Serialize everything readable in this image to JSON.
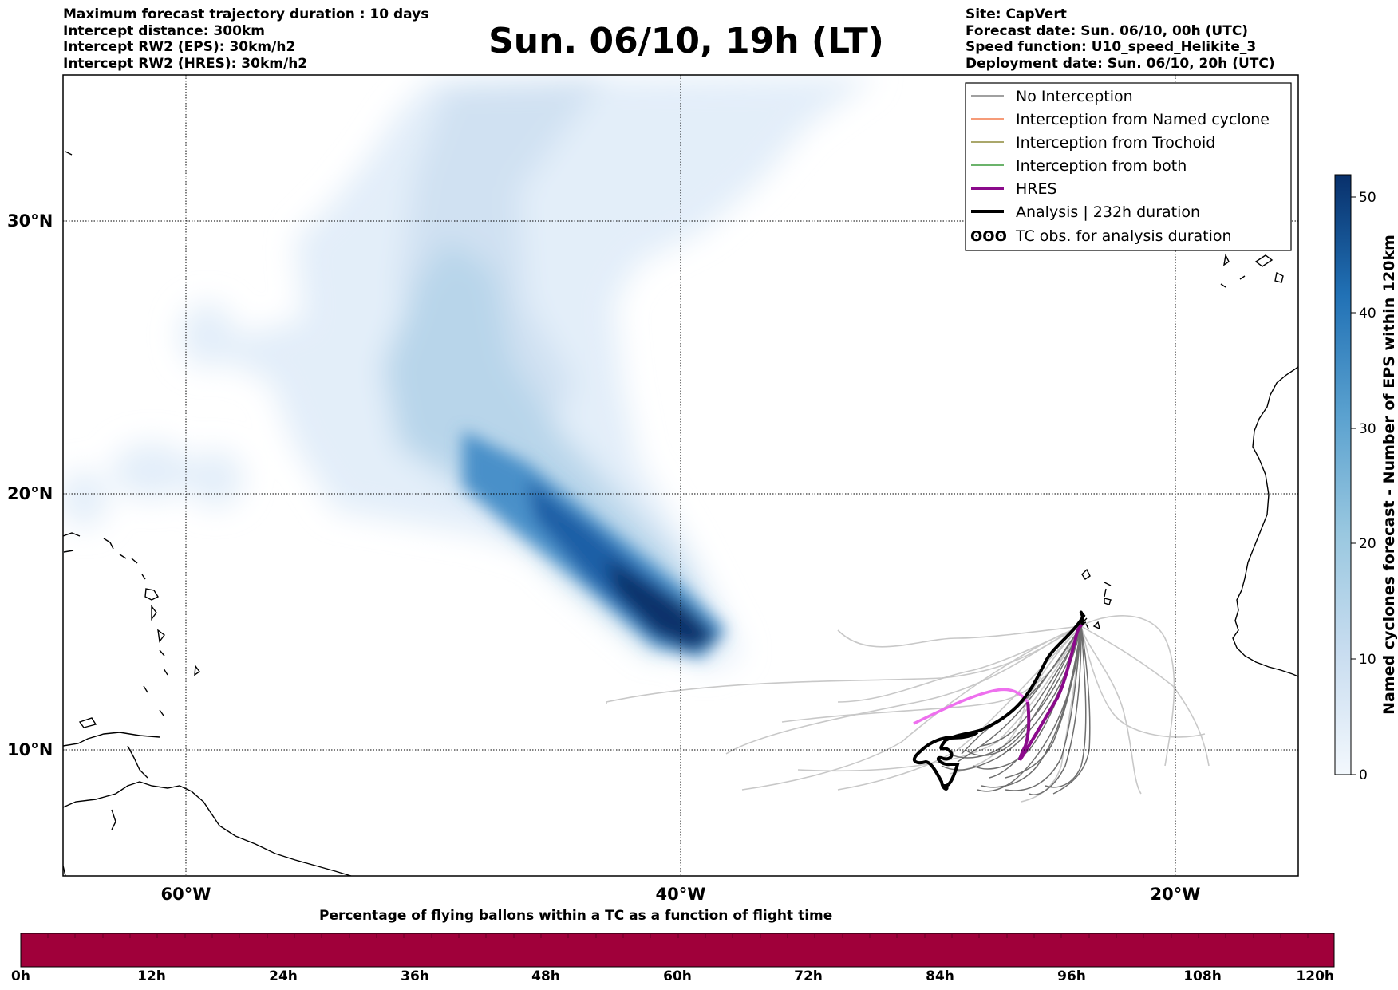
{
  "header": {
    "left_lines": [
      "Maximum forecast trajectory duration : 10 days",
      "Intercept distance: 300km",
      "Intercept RW2 (EPS):  30km/h2",
      "Intercept RW2 (HRES): 30km/h2"
    ],
    "title": "Sun. 06/10, 19h (LT)",
    "right_lines": [
      "Site: CapVert",
      "Forecast date: Sun. 06/10, 00h (UTC)",
      "Speed function: U10_speed_Helikite_3",
      "Deployment date: Sun. 06/10, 20h (UTC)"
    ]
  },
  "map": {
    "lon_labels": [
      "60°W",
      "40°W",
      "20°W"
    ],
    "lat_labels": [
      "30°N",
      "20°N",
      "10°N"
    ],
    "legend": [
      {
        "label": "No Interception",
        "color": "#808080"
      },
      {
        "label": "Interception from Named cyclone",
        "color": "#f47a4c"
      },
      {
        "label": "Interception from Trochoid",
        "color": "#8e8a3a"
      },
      {
        "label": "Interception from both",
        "color": "#3a9a3a"
      },
      {
        "label": "HRES",
        "color": "#8b0a8b"
      },
      {
        "label": "Analysis | 232h duration",
        "color": "#000000"
      },
      {
        "label": "TC obs. for analysis duration",
        "color": "#000000",
        "symbol": "ʘʘʘ"
      }
    ]
  },
  "colorbar_right": {
    "label": "Named cyclones forecast - Number of EPS within 120km",
    "ticks": [
      "0",
      "10",
      "20",
      "30",
      "40",
      "50"
    ],
    "color_low": "#f3f8fd",
    "color_high": "#08306b"
  },
  "colorbar_bottom": {
    "title": "Percentage of flying ballons within a TC as a function of flight time",
    "ticks": [
      "0h",
      "12h",
      "24h",
      "36h",
      "48h",
      "60h",
      "72h",
      "84h",
      "96h",
      "108h",
      "120h"
    ],
    "color": "#a0003a"
  }
}
